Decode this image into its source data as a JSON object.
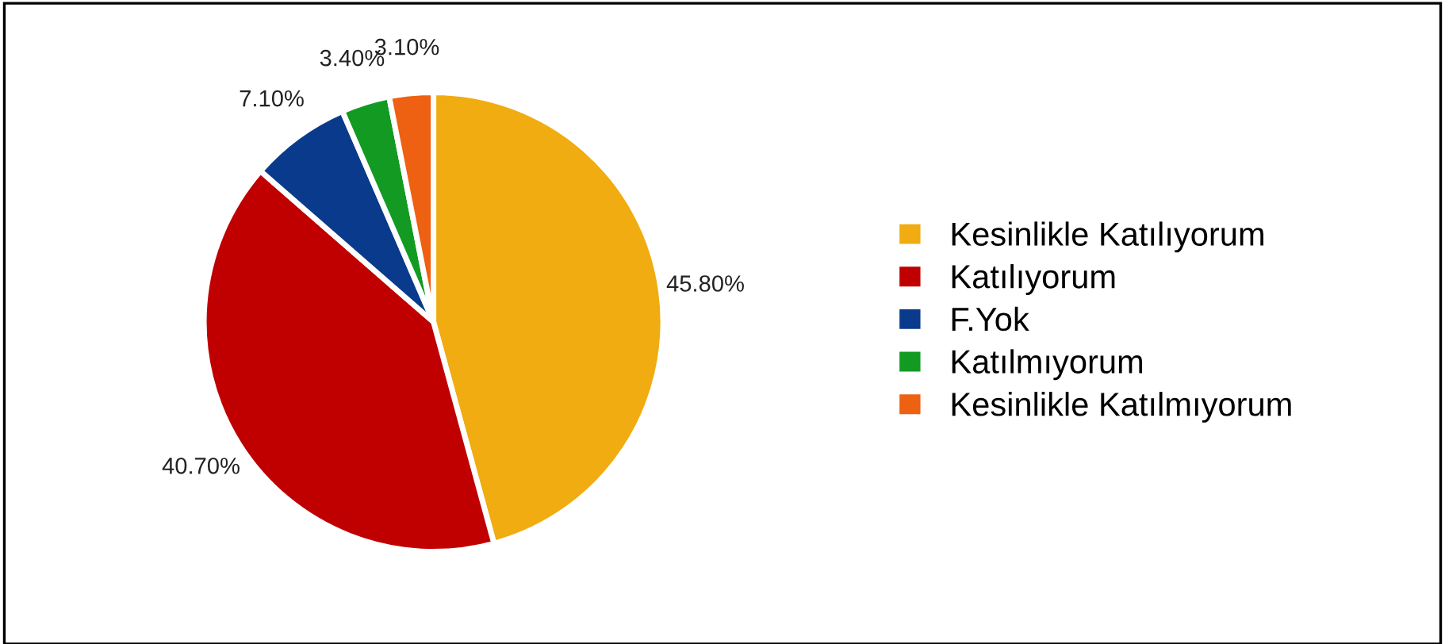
{
  "chart_data": {
    "type": "pie",
    "categories": [
      "Kesinlikle Katılıyorum",
      "Katılıyorum",
      "F.Yok",
      "Katılmıyorum",
      "Kesinlikle Katılmıyorum"
    ],
    "values": [
      45.8,
      40.7,
      7.1,
      3.4,
      3.1
    ],
    "colors": [
      "#f0ac10",
      "#c00000",
      "#0a3a8c",
      "#129a22",
      "#ee6012"
    ],
    "value_labels": [
      "45.80%",
      "40.70%",
      "7.10%",
      "3.40%",
      "3.10%"
    ],
    "legend": "right"
  }
}
